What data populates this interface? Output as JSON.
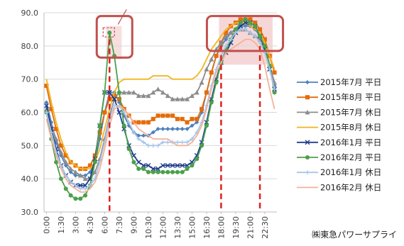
{
  "chart_data": {
    "type": "line",
    "x": [
      "0:00",
      "0:30",
      "1:00",
      "1:30",
      "2:00",
      "2:30",
      "3:00",
      "3:30",
      "4:00",
      "4:30",
      "5:00",
      "5:30",
      "6:00",
      "6:30",
      "7:00",
      "7:30",
      "8:00",
      "8:30",
      "9:00",
      "9:30",
      "10:00",
      "10:30",
      "11:00",
      "11:30",
      "12:00",
      "12:30",
      "13:00",
      "13:30",
      "14:00",
      "14:30",
      "15:00",
      "15:30",
      "16:00",
      "16:30",
      "17:00",
      "17:30",
      "18:00",
      "18:30",
      "19:00",
      "19:30",
      "20:00",
      "20:30",
      "21:00",
      "21:30",
      "22:00",
      "22:30",
      "23:00",
      "23:30"
    ],
    "x_tick_labels": [
      "0:00",
      "1:30",
      "3:00",
      "4:30",
      "6:00",
      "7:30",
      "9:00",
      "10:30",
      "12:00",
      "13:30",
      "15:00",
      "16:30",
      "18:00",
      "19:30",
      "21:00",
      "22:30"
    ],
    "ylim": [
      30,
      90
    ],
    "y_ticks": [
      "30.0",
      "40.0",
      "50.0",
      "60.0",
      "70.0",
      "80.0",
      "90.0"
    ],
    "grid": "horizontal",
    "legend_position": "right",
    "series": [
      {
        "name": "2015年7月 平日",
        "color": "#4f81bd",
        "marker": "diamond",
        "values": [
          63,
          57,
          51,
          47,
          44,
          42,
          41,
          41,
          41,
          42,
          45,
          52,
          60,
          66,
          66,
          63,
          59,
          56,
          54,
          53,
          53,
          53,
          54,
          55,
          55,
          55,
          55,
          55,
          55,
          55,
          56,
          57,
          60,
          66,
          72,
          77,
          80,
          82,
          84,
          85,
          86,
          86,
          86,
          85,
          83,
          80,
          74,
          68
        ]
      },
      {
        "name": "2015年8月 平日",
        "color": "#e46c0a",
        "marker": "square",
        "values": [
          68,
          61,
          55,
          50,
          47,
          45,
          44,
          43,
          43,
          44,
          47,
          54,
          60,
          64,
          65,
          64,
          61,
          59,
          57,
          57,
          57,
          57,
          58,
          59,
          59,
          59,
          59,
          58,
          58,
          57,
          58,
          58,
          61,
          66,
          72,
          77,
          81,
          84,
          86,
          87,
          88,
          88,
          88,
          87,
          85,
          82,
          77,
          72
        ]
      },
      {
        "name": "2015年7月 休日",
        "color": "#8c8c8c",
        "marker": "triangle",
        "values": [
          61,
          56,
          52,
          48,
          45,
          43,
          42,
          41,
          40,
          40,
          42,
          46,
          52,
          59,
          64,
          66,
          66,
          66,
          66,
          65,
          65,
          65,
          66,
          67,
          66,
          65,
          64,
          64,
          64,
          64,
          65,
          66,
          69,
          73,
          76,
          79,
          81,
          83,
          84,
          85,
          85,
          85,
          84,
          83,
          82,
          79,
          74,
          69
        ]
      },
      {
        "name": "2015年8月 休日",
        "color": "#f1b51c",
        "marker": "none",
        "values": [
          70,
          63,
          57,
          52,
          48,
          45,
          44,
          43,
          43,
          43,
          45,
          49,
          55,
          61,
          66,
          69,
          70,
          70,
          70,
          70,
          70,
          70,
          71,
          71,
          71,
          71,
          70,
          70,
          70,
          70,
          70,
          71,
          73,
          76,
          79,
          81,
          83,
          85,
          86,
          87,
          87,
          87,
          86,
          85,
          84,
          81,
          77,
          73
        ]
      },
      {
        "name": "2016年1月 平日",
        "color": "#1f3e8c",
        "marker": "x",
        "values": [
          62,
          55,
          49,
          44,
          41,
          39,
          38,
          38,
          38,
          40,
          46,
          56,
          66,
          66,
          64,
          60,
          55,
          50,
          47,
          45,
          44,
          44,
          43,
          43,
          44,
          44,
          44,
          44,
          44,
          44,
          45,
          47,
          51,
          57,
          64,
          70,
          75,
          78,
          81,
          84,
          86,
          87,
          87,
          86,
          83,
          79,
          73,
          67
        ]
      },
      {
        "name": "2016年2月 平日",
        "color": "#4ba04b",
        "marker": "circle",
        "values": [
          60,
          52,
          45,
          40,
          37,
          35,
          34,
          34,
          35,
          38,
          45,
          56,
          66,
          84,
          77,
          66,
          56,
          49,
          45,
          43,
          43,
          42,
          42,
          42,
          42,
          42,
          42,
          42,
          42,
          43,
          44,
          46,
          50,
          56,
          63,
          69,
          75,
          79,
          82,
          85,
          87,
          88,
          87,
          86,
          83,
          80,
          74,
          66
        ]
      },
      {
        "name": "2016年1月 休日",
        "color": "#a9c6e8",
        "marker": "plus",
        "values": [
          60,
          54,
          48,
          44,
          41,
          39,
          38,
          37,
          37,
          38,
          40,
          45,
          51,
          58,
          62,
          62,
          60,
          57,
          54,
          52,
          51,
          50,
          50,
          50,
          51,
          51,
          51,
          51,
          51,
          51,
          52,
          54,
          57,
          62,
          68,
          73,
          77,
          80,
          82,
          84,
          85,
          85,
          84,
          83,
          81,
          78,
          73,
          67
        ]
      },
      {
        "name": "2016年2月 休日",
        "color": "#f4b29a",
        "marker": "none",
        "values": [
          58,
          52,
          47,
          43,
          40,
          38,
          37,
          36,
          36,
          37,
          39,
          43,
          49,
          56,
          61,
          62,
          61,
          59,
          57,
          55,
          54,
          53,
          52,
          52,
          52,
          52,
          51,
          50,
          50,
          50,
          51,
          53,
          56,
          61,
          67,
          72,
          75,
          78,
          79,
          80,
          81,
          82,
          82,
          81,
          79,
          74,
          67,
          61
        ]
      }
    ]
  },
  "credit": "㈱東急パワーサプライ",
  "highlight_color": "#c0504d",
  "marker_line_color": "#e02020"
}
